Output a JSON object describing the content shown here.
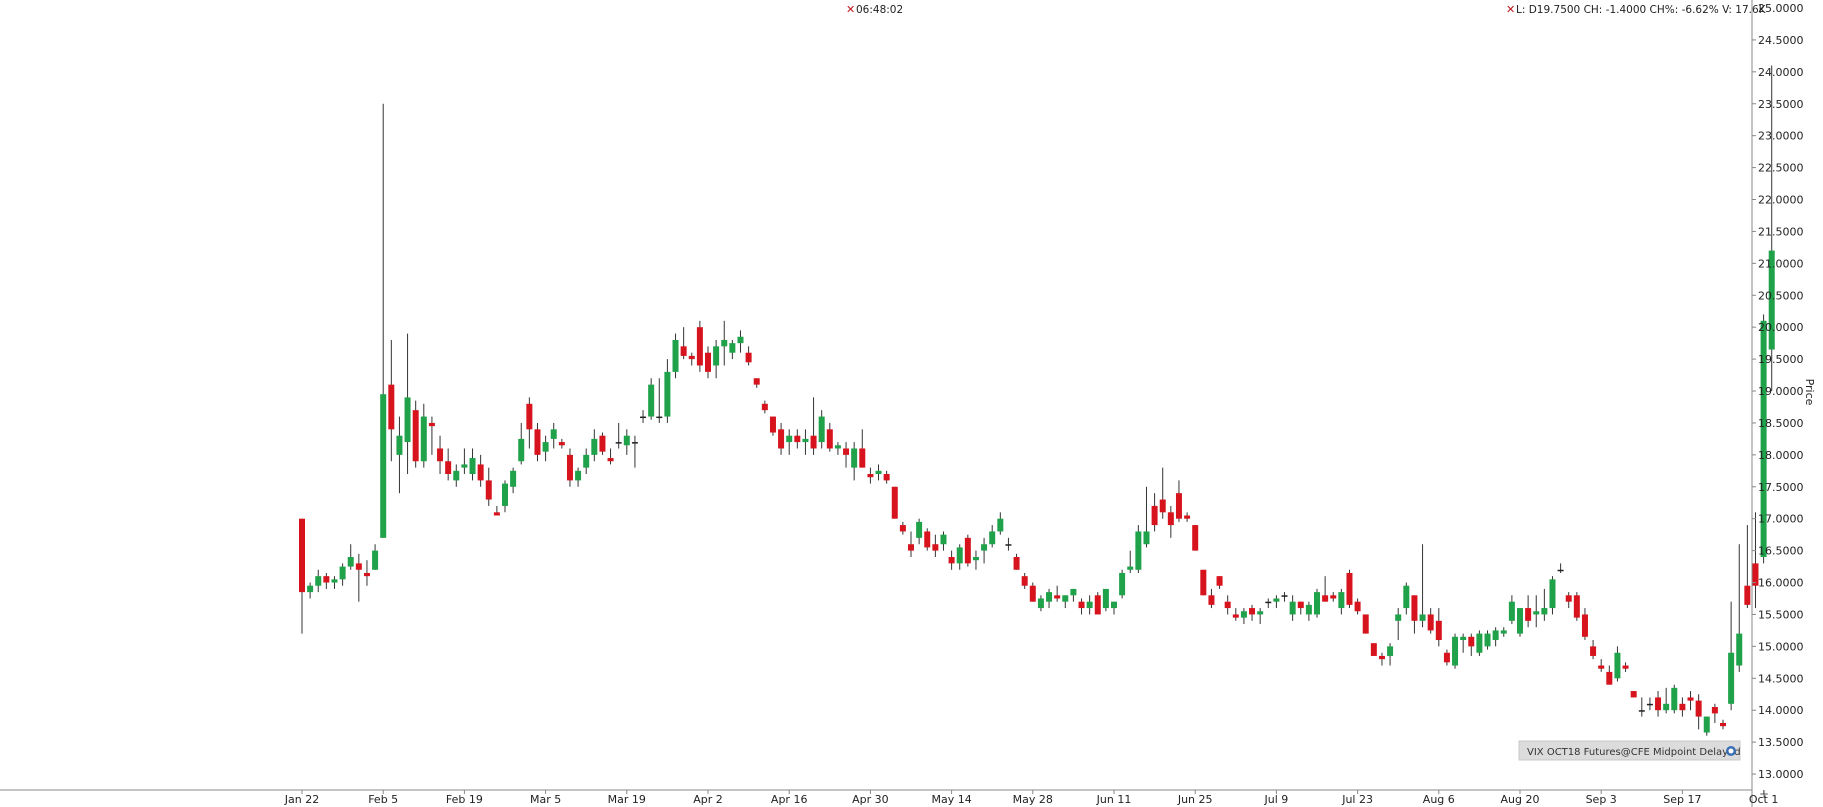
{
  "header": {
    "time": "06:48:02",
    "status": "L: D19.7500 CH: -1.4000 CH%: -6.62% V: 17.6K"
  },
  "badge": {
    "text": "VIX OCT18 Futures@CFE Midpoint Delayed"
  },
  "colors": {
    "up": "#1fa24a",
    "down": "#d7141d",
    "neutral": "#222222",
    "axis": "#888888",
    "marker": "#c0171f"
  },
  "chart_data": {
    "type": "candlestick",
    "ylabel": "Price",
    "ylim": [
      12.75,
      25.0
    ],
    "yticks": [
      "25.0000",
      "24.5000",
      "24.0000",
      "23.5000",
      "23.0000",
      "22.5000",
      "22.0000",
      "21.5000",
      "21.0000",
      "20.5000",
      "20.0000",
      "19.5000",
      "19.0000",
      "18.5000",
      "18.0000",
      "17.5000",
      "17.0000",
      "16.5000",
      "16.0000",
      "15.5000",
      "15.0000",
      "14.5000",
      "14.0000",
      "13.5000",
      "13.0000"
    ],
    "xlabels": [
      {
        "label": "Jan 22",
        "index": 0
      },
      {
        "label": "Feb 5",
        "index": 10
      },
      {
        "label": "Feb 19",
        "index": 20
      },
      {
        "label": "Mar 5",
        "index": 30
      },
      {
        "label": "Mar 19",
        "index": 40
      },
      {
        "label": "Apr 2",
        "index": 50
      },
      {
        "label": "Apr 16",
        "index": 60
      },
      {
        "label": "Apr 30",
        "index": 70
      },
      {
        "label": "May 14",
        "index": 80
      },
      {
        "label": "May 28",
        "index": 90
      },
      {
        "label": "Jun 11",
        "index": 100
      },
      {
        "label": "Jun 25",
        "index": 110
      },
      {
        "label": "Jul 9",
        "index": 120
      },
      {
        "label": "Jul 23",
        "index": 130
      },
      {
        "label": "Aug 6",
        "index": 140
      },
      {
        "label": "Aug 20",
        "index": 150
      },
      {
        "label": "Sep 3",
        "index": 160
      },
      {
        "label": "Sep 17",
        "index": 170
      },
      {
        "label": "Oct 1",
        "index": 180
      }
    ],
    "candles": [
      [
        17.0,
        17.0,
        15.2,
        15.85
      ],
      [
        15.85,
        16.0,
        15.75,
        15.95
      ],
      [
        15.95,
        16.2,
        15.85,
        16.1
      ],
      [
        16.1,
        16.15,
        15.9,
        16.0
      ],
      [
        16.0,
        16.1,
        15.9,
        16.05
      ],
      [
        16.05,
        16.3,
        15.95,
        16.25
      ],
      [
        16.25,
        16.6,
        16.2,
        16.4
      ],
      [
        16.3,
        16.45,
        15.7,
        16.2
      ],
      [
        16.15,
        16.35,
        15.95,
        16.1
      ],
      [
        16.2,
        16.6,
        16.2,
        16.5
      ],
      [
        16.7,
        23.5,
        16.7,
        18.95
      ],
      [
        19.1,
        19.8,
        17.9,
        18.4
      ],
      [
        18.0,
        18.6,
        17.4,
        18.3
      ],
      [
        18.2,
        19.9,
        17.7,
        18.9
      ],
      [
        18.7,
        18.85,
        17.8,
        17.9
      ],
      [
        17.9,
        18.8,
        17.8,
        18.6
      ],
      [
        18.5,
        18.6,
        18.0,
        18.45
      ],
      [
        18.1,
        18.3,
        17.7,
        17.9
      ],
      [
        17.9,
        18.1,
        17.6,
        17.7
      ],
      [
        17.6,
        17.85,
        17.5,
        17.75
      ],
      [
        17.8,
        18.1,
        17.7,
        17.85
      ],
      [
        17.7,
        18.1,
        17.6,
        17.95
      ],
      [
        17.85,
        18.0,
        17.5,
        17.6
      ],
      [
        17.6,
        17.8,
        17.2,
        17.3
      ],
      [
        17.1,
        17.2,
        17.05,
        17.05
      ],
      [
        17.2,
        17.6,
        17.1,
        17.55
      ],
      [
        17.5,
        17.8,
        17.4,
        17.75
      ],
      [
        17.9,
        18.5,
        17.85,
        18.25
      ],
      [
        18.8,
        18.9,
        18.1,
        18.4
      ],
      [
        18.4,
        18.5,
        17.9,
        18.0
      ],
      [
        18.05,
        18.3,
        17.9,
        18.2
      ],
      [
        18.25,
        18.5,
        18.1,
        18.4
      ],
      [
        18.2,
        18.25,
        18.1,
        18.15
      ],
      [
        18.0,
        18.1,
        17.5,
        17.6
      ],
      [
        17.6,
        17.8,
        17.5,
        17.75
      ],
      [
        17.8,
        18.1,
        17.7,
        18.0
      ],
      [
        18.0,
        18.4,
        17.9,
        18.25
      ],
      [
        18.3,
        18.35,
        18.0,
        18.05
      ],
      [
        17.95,
        18.1,
        17.85,
        17.9
      ],
      [
        18.2,
        18.5,
        18.1,
        18.2
      ],
      [
        18.15,
        18.4,
        18.0,
        18.3
      ],
      [
        18.2,
        18.3,
        17.8,
        18.2
      ],
      [
        18.6,
        18.7,
        18.5,
        18.6
      ],
      [
        18.6,
        19.2,
        18.55,
        19.1
      ],
      [
        18.6,
        19.2,
        18.5,
        18.6
      ],
      [
        18.6,
        19.5,
        18.5,
        19.3
      ],
      [
        19.3,
        19.9,
        19.2,
        19.8
      ],
      [
        19.7,
        20.0,
        19.5,
        19.55
      ],
      [
        19.55,
        19.6,
        19.4,
        19.5
      ],
      [
        20.0,
        20.1,
        19.3,
        19.4
      ],
      [
        19.6,
        19.7,
        19.2,
        19.3
      ],
      [
        19.4,
        19.8,
        19.2,
        19.7
      ],
      [
        19.7,
        20.1,
        19.4,
        19.8
      ],
      [
        19.6,
        19.8,
        19.5,
        19.75
      ],
      [
        19.75,
        19.95,
        19.6,
        19.85
      ],
      [
        19.6,
        19.7,
        19.4,
        19.45
      ],
      [
        19.2,
        19.2,
        19.05,
        19.1
      ],
      [
        18.8,
        18.85,
        18.65,
        18.7
      ],
      [
        18.6,
        18.6,
        18.3,
        18.35
      ],
      [
        18.4,
        18.5,
        18.0,
        18.1
      ],
      [
        18.2,
        18.4,
        18.0,
        18.3
      ],
      [
        18.3,
        18.4,
        18.1,
        18.2
      ],
      [
        18.2,
        18.4,
        18.0,
        18.25
      ],
      [
        18.3,
        18.9,
        18.0,
        18.1
      ],
      [
        18.2,
        18.7,
        18.1,
        18.6
      ],
      [
        18.4,
        18.5,
        18.05,
        18.1
      ],
      [
        18.1,
        18.2,
        18.0,
        18.15
      ],
      [
        18.1,
        18.2,
        17.8,
        18.0
      ],
      [
        17.8,
        18.2,
        17.6,
        18.1
      ],
      [
        18.1,
        18.4,
        17.8,
        17.8
      ],
      [
        17.7,
        17.8,
        17.55,
        17.65
      ],
      [
        17.7,
        17.85,
        17.6,
        17.75
      ],
      [
        17.7,
        17.75,
        17.55,
        17.6
      ],
      [
        17.5,
        17.5,
        17.0,
        17.0
      ],
      [
        16.9,
        16.95,
        16.75,
        16.8
      ],
      [
        16.6,
        16.8,
        16.4,
        16.5
      ],
      [
        16.7,
        17.0,
        16.6,
        16.95
      ],
      [
        16.8,
        16.85,
        16.5,
        16.55
      ],
      [
        16.6,
        16.75,
        16.4,
        16.5
      ],
      [
        16.6,
        16.8,
        16.5,
        16.75
      ],
      [
        16.4,
        16.5,
        16.2,
        16.3
      ],
      [
        16.3,
        16.6,
        16.2,
        16.55
      ],
      [
        16.7,
        16.75,
        16.25,
        16.3
      ],
      [
        16.35,
        16.5,
        16.2,
        16.4
      ],
      [
        16.5,
        16.7,
        16.3,
        16.6
      ],
      [
        16.6,
        16.9,
        16.55,
        16.8
      ],
      [
        16.8,
        17.1,
        16.75,
        17.0
      ],
      [
        16.6,
        16.7,
        16.5,
        16.6
      ],
      [
        16.4,
        16.45,
        16.2,
        16.2
      ],
      [
        16.1,
        16.15,
        15.9,
        15.95
      ],
      [
        15.95,
        16.0,
        15.7,
        15.7
      ],
      [
        15.6,
        15.8,
        15.55,
        15.75
      ],
      [
        15.7,
        15.9,
        15.6,
        15.85
      ],
      [
        15.8,
        15.95,
        15.7,
        15.75
      ],
      [
        15.7,
        15.8,
        15.6,
        15.8
      ],
      [
        15.8,
        15.9,
        15.7,
        15.9
      ],
      [
        15.7,
        15.75,
        15.5,
        15.6
      ],
      [
        15.6,
        15.8,
        15.5,
        15.7
      ],
      [
        15.8,
        15.85,
        15.5,
        15.5
      ],
      [
        15.6,
        15.9,
        15.55,
        15.9
      ],
      [
        15.6,
        15.7,
        15.5,
        15.7
      ],
      [
        15.8,
        16.2,
        15.75,
        16.15
      ],
      [
        16.2,
        16.5,
        16.15,
        16.25
      ],
      [
        16.2,
        16.9,
        16.15,
        16.8
      ],
      [
        16.6,
        17.5,
        16.55,
        16.8
      ],
      [
        17.2,
        17.4,
        16.8,
        16.9
      ],
      [
        17.3,
        17.8,
        17.0,
        17.1
      ],
      [
        17.1,
        17.2,
        16.7,
        16.9
      ],
      [
        17.4,
        17.6,
        16.95,
        17.0
      ],
      [
        17.05,
        17.1,
        16.95,
        17.0
      ],
      [
        16.9,
        16.9,
        16.5,
        16.5
      ],
      [
        16.2,
        16.2,
        15.8,
        15.8
      ],
      [
        15.8,
        15.9,
        15.6,
        15.65
      ],
      [
        16.1,
        16.1,
        15.9,
        15.95
      ],
      [
        15.7,
        15.8,
        15.5,
        15.6
      ],
      [
        15.5,
        15.6,
        15.4,
        15.45
      ],
      [
        15.45,
        15.6,
        15.35,
        15.55
      ],
      [
        15.6,
        15.65,
        15.4,
        15.5
      ],
      [
        15.5,
        15.6,
        15.35,
        15.55
      ],
      [
        15.7,
        15.75,
        15.6,
        15.7
      ],
      [
        15.7,
        15.8,
        15.6,
        15.75
      ],
      [
        15.8,
        15.85,
        15.7,
        15.8
      ],
      [
        15.5,
        15.8,
        15.4,
        15.7
      ],
      [
        15.7,
        15.7,
        15.5,
        15.6
      ],
      [
        15.5,
        15.7,
        15.4,
        15.65
      ],
      [
        15.5,
        15.9,
        15.45,
        15.85
      ],
      [
        15.8,
        16.1,
        15.7,
        15.7
      ],
      [
        15.8,
        15.85,
        15.7,
        15.75
      ],
      [
        15.6,
        15.9,
        15.5,
        15.85
      ],
      [
        16.15,
        16.2,
        15.6,
        15.65
      ],
      [
        15.7,
        15.75,
        15.5,
        15.55
      ],
      [
        15.5,
        15.5,
        15.2,
        15.2
      ],
      [
        15.05,
        15.05,
        14.85,
        14.85
      ],
      [
        14.85,
        14.9,
        14.7,
        14.8
      ],
      [
        14.85,
        15.05,
        14.7,
        15.0
      ],
      [
        15.4,
        15.6,
        15.1,
        15.5
      ],
      [
        15.6,
        16.0,
        15.5,
        15.95
      ],
      [
        15.8,
        15.8,
        15.2,
        15.4
      ],
      [
        15.4,
        16.6,
        15.3,
        15.5
      ],
      [
        15.5,
        15.6,
        15.2,
        15.25
      ],
      [
        15.4,
        15.6,
        15.0,
        15.1
      ],
      [
        14.9,
        14.95,
        14.7,
        14.75
      ],
      [
        14.7,
        15.2,
        14.65,
        15.15
      ],
      [
        15.1,
        15.2,
        14.9,
        15.15
      ],
      [
        15.15,
        15.2,
        14.85,
        15.0
      ],
      [
        14.9,
        15.25,
        14.85,
        15.2
      ],
      [
        15.0,
        15.25,
        14.95,
        15.2
      ],
      [
        15.1,
        15.3,
        15.0,
        15.25
      ],
      [
        15.2,
        15.3,
        15.15,
        15.25
      ],
      [
        15.4,
        15.8,
        15.35,
        15.7
      ],
      [
        15.2,
        15.6,
        15.15,
        15.6
      ],
      [
        15.6,
        15.8,
        15.3,
        15.4
      ],
      [
        15.5,
        15.8,
        15.3,
        15.55
      ],
      [
        15.5,
        15.9,
        15.4,
        15.6
      ],
      [
        15.6,
        16.1,
        15.5,
        16.05
      ],
      [
        16.2,
        16.3,
        16.15,
        16.2
      ],
      [
        15.8,
        15.85,
        15.6,
        15.7
      ],
      [
        15.8,
        15.85,
        15.4,
        15.45
      ],
      [
        15.5,
        15.6,
        15.1,
        15.15
      ],
      [
        15.0,
        15.1,
        14.8,
        14.85
      ],
      [
        14.7,
        14.8,
        14.6,
        14.65
      ],
      [
        14.6,
        14.7,
        14.4,
        14.4
      ],
      [
        14.5,
        15.0,
        14.45,
        14.9
      ],
      [
        14.7,
        14.75,
        14.6,
        14.65
      ],
      [
        14.3,
        14.3,
        14.2,
        14.2
      ],
      [
        14.0,
        14.2,
        13.9,
        14.0
      ],
      [
        14.1,
        14.2,
        14.0,
        14.1
      ],
      [
        14.2,
        14.3,
        13.9,
        14.0
      ],
      [
        14.0,
        14.35,
        13.95,
        14.1
      ],
      [
        14.0,
        14.4,
        13.95,
        14.35
      ],
      [
        14.1,
        14.2,
        13.9,
        14.0
      ],
      [
        14.2,
        14.3,
        14.0,
        14.15
      ],
      [
        14.15,
        14.25,
        13.7,
        13.9
      ],
      [
        13.65,
        13.9,
        13.6,
        13.9
      ],
      [
        14.05,
        14.1,
        13.8,
        13.95
      ],
      [
        13.8,
        13.85,
        13.7,
        13.75
      ],
      [
        14.1,
        15.7,
        14.0,
        14.9
      ],
      [
        14.7,
        16.6,
        14.6,
        15.2
      ],
      [
        15.95,
        16.9,
        15.6,
        15.65
      ],
      [
        16.3,
        17.1,
        15.6,
        15.95
      ],
      [
        16.4,
        20.2,
        16.3,
        20.1
      ],
      [
        19.65,
        24.1,
        19.0,
        21.2
      ]
    ]
  }
}
